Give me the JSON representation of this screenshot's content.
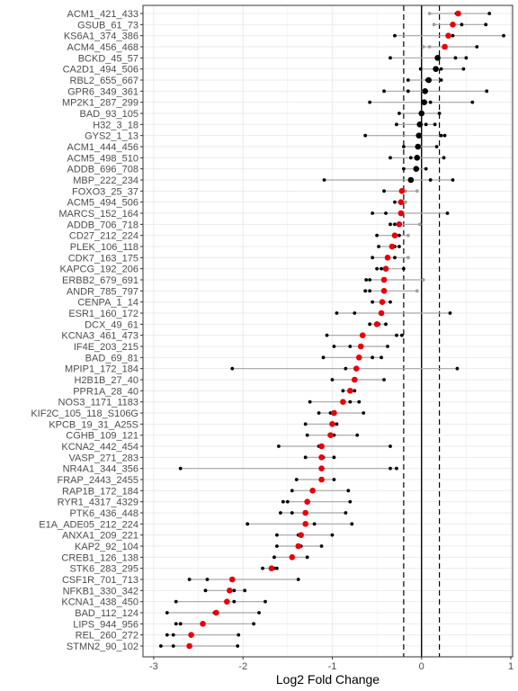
{
  "chart_data": {
    "type": "scatter",
    "xlabel": "Log2 Fold Change",
    "ylabel": "",
    "xlim": [
      -3.12,
      1.02
    ],
    "x_ticks": [
      -3,
      -2,
      -1,
      0,
      1
    ],
    "x_tick_labels": [
      "-3",
      "-2",
      "-1",
      "0",
      "1"
    ],
    "reference_lines": {
      "solid": [
        0
      ],
      "dashed": [
        -0.2,
        0.2
      ]
    },
    "grid": true,
    "legend": "none",
    "colors": {
      "significant": "#e8000b",
      "not_significant": "#000000",
      "replicate": "#000000",
      "replicate_faded": "#a0a0a0",
      "range": "#a6a6a6",
      "zero_line": "#000000",
      "threshold_line": "#000000",
      "grid": "#ebebeb",
      "border": "#333333"
    },
    "rows": [
      {
        "label": "ACM1_421_433",
        "mean": 0.41,
        "reps": [
          0.09,
          0.39,
          0.76
        ],
        "sig": true
      },
      {
        "label": "GSUB_61_73",
        "mean": 0.35,
        "reps": [
          0.14,
          0.45,
          0.72
        ],
        "sig": true
      },
      {
        "label": "KS6A1_374_386",
        "mean": 0.3,
        "reps": [
          -0.3,
          0.35,
          0.92
        ],
        "sig": true
      },
      {
        "label": "ACM4_456_468",
        "mean": 0.26,
        "reps": [
          0.02,
          0.09,
          0.62
        ],
        "sig": true
      },
      {
        "label": "BCKD_45_57",
        "mean": 0.18,
        "reps": [
          -0.35,
          0.38,
          0.5
        ],
        "sig": false
      },
      {
        "label": "CA2D1_494_506",
        "mean": 0.16,
        "reps": [
          -0.01,
          0.22,
          0.47
        ],
        "sig": false
      },
      {
        "label": "RBL2_655_667",
        "mean": 0.08,
        "reps": [
          -0.15,
          0.06,
          0.22
        ],
        "sig": false
      },
      {
        "label": "GPR6_349_361",
        "mean": 0.04,
        "reps": [
          -0.42,
          -0.15,
          0.73
        ],
        "sig": false
      },
      {
        "label": "MP2K1_287_299",
        "mean": 0.03,
        "reps": [
          -0.58,
          0.1,
          0.57
        ],
        "sig": false
      },
      {
        "label": "BAD_93_105",
        "mean": 0.0,
        "reps": [
          -0.25,
          0.01,
          0.2
        ],
        "sig": false
      },
      {
        "label": "H32_3_18",
        "mean": -0.02,
        "reps": [
          -0.28,
          0.05,
          0.15
        ],
        "sig": false
      },
      {
        "label": "GYS2_1_13",
        "mean": -0.03,
        "reps": [
          -0.63,
          0.22,
          0.26
        ],
        "sig": false
      },
      {
        "label": "ACM1_444_456",
        "mean": -0.04,
        "reps": [
          -0.2,
          -0.05,
          0.17
        ],
        "sig": false
      },
      {
        "label": "ACM5_498_510",
        "mean": -0.05,
        "reps": [
          -0.35,
          -0.12,
          0.25
        ],
        "sig": false
      },
      {
        "label": "ADDB_696_708",
        "mean": -0.06,
        "reps": [
          -0.2,
          -0.05,
          0.05
        ],
        "sig": false
      },
      {
        "label": "MBP_222_234",
        "mean": -0.12,
        "reps": [
          -1.09,
          0.1,
          0.35
        ],
        "sig": false
      },
      {
        "label": "FOXO3_25_37",
        "mean": -0.22,
        "reps": [
          -0.42,
          -0.18,
          -0.05
        ],
        "sig": true
      },
      {
        "label": "ACM5_494_506",
        "mean": -0.23,
        "reps": [
          -0.3,
          -0.22,
          -0.18
        ],
        "sig": true
      },
      {
        "label": "MARCS_152_164",
        "mean": -0.23,
        "reps": [
          -0.55,
          -0.4,
          0.29
        ],
        "sig": true
      },
      {
        "label": "ADDB_706_718",
        "mean": -0.25,
        "reps": [
          -0.35,
          -0.3,
          -0.02
        ],
        "sig": true
      },
      {
        "label": "CD27_212_224",
        "mean": -0.3,
        "reps": [
          -0.5,
          -0.25,
          -0.15
        ],
        "sig": true
      },
      {
        "label": "PLEK_106_118",
        "mean": -0.33,
        "reps": [
          -0.48,
          -0.3,
          -0.25
        ],
        "sig": true
      },
      {
        "label": "CDK7_163_175",
        "mean": -0.38,
        "reps": [
          -0.55,
          -0.3,
          -0.15
        ],
        "sig": true
      },
      {
        "label": "KAPCG_192_206",
        "mean": -0.4,
        "reps": [
          -0.5,
          -0.45,
          -0.2
        ],
        "sig": true
      },
      {
        "label": "ERBB2_679_691",
        "mean": -0.42,
        "reps": [
          -0.62,
          -0.58,
          0.02
        ],
        "sig": true
      },
      {
        "label": "ANDR_785_797",
        "mean": -0.42,
        "reps": [
          -0.63,
          -0.58,
          -0.05
        ],
        "sig": true
      },
      {
        "label": "CENPA_1_14",
        "mean": -0.44,
        "reps": [
          -0.55,
          -0.45,
          -0.35
        ],
        "sig": true
      },
      {
        "label": "ESR1_160_172",
        "mean": -0.45,
        "reps": [
          -0.95,
          -0.75,
          0.32
        ],
        "sig": true
      },
      {
        "label": "DCX_49_61",
        "mean": -0.5,
        "reps": [
          -0.58,
          -0.48,
          -0.4
        ],
        "sig": true
      },
      {
        "label": "KCNA3_461_473",
        "mean": -0.66,
        "reps": [
          -1.06,
          -0.28,
          -0.22
        ],
        "sig": true
      },
      {
        "label": "IF4E_203_215",
        "mean": -0.68,
        "reps": [
          -0.98,
          -0.8,
          -0.38
        ],
        "sig": true
      },
      {
        "label": "BAD_69_81",
        "mean": -0.7,
        "reps": [
          -1.1,
          -0.55,
          -0.45
        ],
        "sig": true
      },
      {
        "label": "MPIP1_172_184",
        "mean": -0.73,
        "reps": [
          -2.12,
          -0.85,
          0.4
        ],
        "sig": true
      },
      {
        "label": "H2B1B_27_40",
        "mean": -0.75,
        "reps": [
          -1.0,
          -0.75,
          -0.42
        ],
        "sig": true
      },
      {
        "label": "PPR1A_28_40",
        "mean": -0.8,
        "reps": [
          -0.88,
          -0.8,
          -0.75
        ],
        "sig": true
      },
      {
        "label": "NOS3_1171_1183",
        "mean": -0.88,
        "reps": [
          -1.25,
          -0.8,
          -0.7
        ],
        "sig": true
      },
      {
        "label": "KIF2C_105_118_S106G",
        "mean": -0.98,
        "reps": [
          -1.15,
          -1.02,
          -0.65
        ],
        "sig": true
      },
      {
        "label": "KPCB_19_31_A25S",
        "mean": -1.0,
        "reps": [
          -1.3,
          -1.0,
          -0.95
        ],
        "sig": true
      },
      {
        "label": "CGHB_109_121",
        "mean": -1.02,
        "reps": [
          -1.28,
          -0.98,
          -0.72
        ],
        "sig": true
      },
      {
        "label": "KCNA2_442_454",
        "mean": -1.12,
        "reps": [
          -1.6,
          -1.15,
          -0.35
        ],
        "sig": true
      },
      {
        "label": "VASP_271_283",
        "mean": -1.12,
        "reps": [
          -1.3,
          -1.1,
          -0.98
        ],
        "sig": true
      },
      {
        "label": "NR4A1_344_356",
        "mean": -1.12,
        "reps": [
          -2.7,
          -0.35,
          -0.28
        ],
        "sig": true
      },
      {
        "label": "FRAP_2443_2455",
        "mean": -1.12,
        "reps": [
          -1.4,
          -1.12,
          -0.98
        ],
        "sig": true
      },
      {
        "label": "RAP1B_172_184",
        "mean": -1.22,
        "reps": [
          -1.45,
          -1.22,
          -0.82
        ],
        "sig": true
      },
      {
        "label": "RYR1_4317_4329",
        "mean": -1.28,
        "reps": [
          -1.55,
          -1.5,
          -0.8
        ],
        "sig": true
      },
      {
        "label": "PTK6_436_448",
        "mean": -1.3,
        "reps": [
          -1.58,
          -1.45,
          -0.85
        ],
        "sig": true
      },
      {
        "label": "E1A_ADE05_212_224",
        "mean": -1.3,
        "reps": [
          -1.95,
          -1.2,
          -0.78
        ],
        "sig": true
      },
      {
        "label": "ANXA1_209_221",
        "mean": -1.35,
        "reps": [
          -1.62,
          -1.38,
          -1.0
        ],
        "sig": true
      },
      {
        "label": "KAP2_92_104",
        "mean": -1.38,
        "reps": [
          -1.62,
          -1.35,
          -1.12
        ],
        "sig": true
      },
      {
        "label": "CREB1_126_138",
        "mean": -1.45,
        "reps": [
          -1.65,
          -1.45,
          -1.28
        ],
        "sig": true
      },
      {
        "label": "STK6_283_295",
        "mean": -1.68,
        "reps": [
          -1.78,
          -1.65,
          -1.62
        ],
        "sig": true
      },
      {
        "label": "CSF1R_701_713",
        "mean": -2.12,
        "reps": [
          -2.6,
          -2.4,
          -1.38
        ],
        "sig": true
      },
      {
        "label": "NFKB1_330_342",
        "mean": -2.15,
        "reps": [
          -2.42,
          -2.1,
          -1.98
        ],
        "sig": true
      },
      {
        "label": "KCNA1_438_450",
        "mean": -2.18,
        "reps": [
          -2.75,
          -2.1,
          -1.75
        ],
        "sig": true
      },
      {
        "label": "BAD_112_124",
        "mean": -2.3,
        "reps": [
          -2.85,
          -2.32,
          -1.82
        ],
        "sig": true
      },
      {
        "label": "LIPS_944_956",
        "mean": -2.45,
        "reps": [
          -2.75,
          -2.7,
          -1.88
        ],
        "sig": true
      },
      {
        "label": "REL_260_272",
        "mean": -2.58,
        "reps": [
          -2.85,
          -2.78,
          -2.05
        ],
        "sig": true
      },
      {
        "label": "STMN2_90_102",
        "mean": -2.6,
        "reps": [
          -2.92,
          -2.78,
          -2.06
        ],
        "sig": true
      }
    ]
  }
}
